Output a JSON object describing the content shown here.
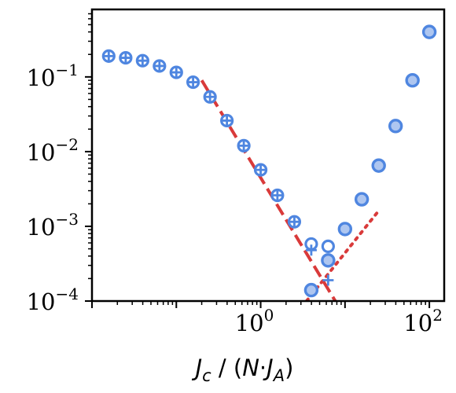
{
  "chart_data": {
    "type": "scatter",
    "xscale": "log",
    "yscale": "log",
    "xlim": [
      0.01,
      150
    ],
    "ylim": [
      0.0001,
      0.8
    ],
    "xlabel": "J_c / (N·J_A)",
    "ylabel": "",
    "title": "",
    "grid": false,
    "x_ticks": [
      {
        "value": 1,
        "label": "10^0"
      },
      {
        "value": 100,
        "label": "10^2"
      }
    ],
    "y_ticks": [
      {
        "value": 0.1,
        "label": "10^-1"
      },
      {
        "value": 0.01,
        "label": "10^-2"
      },
      {
        "value": 0.001,
        "label": "10^-3"
      },
      {
        "value": 0.0001,
        "label": "10^-4"
      }
    ],
    "series": [
      {
        "marker": "open-circle",
        "color": "#4f86e0",
        "points": [
          [
            0.0158,
            0.19
          ],
          [
            0.0251,
            0.18
          ],
          [
            0.0398,
            0.165
          ],
          [
            0.0631,
            0.14
          ],
          [
            0.1,
            0.115
          ],
          [
            0.158,
            0.085
          ],
          [
            0.251,
            0.054
          ],
          [
            0.398,
            0.026
          ],
          [
            0.631,
            0.012
          ],
          [
            1.0,
            0.0057
          ],
          [
            1.58,
            0.0026
          ],
          [
            2.51,
            0.00115
          ],
          [
            3.98,
            0.00058
          ],
          [
            6.31,
            0.00054
          ]
        ]
      },
      {
        "marker": "plus",
        "color": "#4f86e0",
        "points": [
          [
            0.0158,
            0.19
          ],
          [
            0.0251,
            0.18
          ],
          [
            0.0398,
            0.165
          ],
          [
            0.0631,
            0.14
          ],
          [
            0.1,
            0.115
          ],
          [
            0.158,
            0.085
          ],
          [
            0.251,
            0.054
          ],
          [
            0.398,
            0.026
          ],
          [
            0.631,
            0.012
          ],
          [
            1.0,
            0.0057
          ],
          [
            1.58,
            0.0026
          ],
          [
            2.51,
            0.00115
          ],
          [
            3.98,
            0.00048
          ],
          [
            6.31,
            0.00019
          ]
        ]
      },
      {
        "marker": "filled-circle",
        "color": "#aec6f0",
        "points": [
          [
            3.98,
            0.00014
          ],
          [
            6.31,
            0.00035
          ],
          [
            10,
            0.00092
          ],
          [
            15.8,
            0.0023
          ],
          [
            25.1,
            0.0065
          ],
          [
            39.8,
            0.022
          ],
          [
            63.1,
            0.09
          ],
          [
            100,
            0.4
          ]
        ]
      }
    ],
    "fit_lines": [
      {
        "style": "dashed",
        "color": "#d93a3a",
        "x": [
          0.2,
          7.8
        ],
        "y": [
          0.09,
          9.7e-05
        ]
      },
      {
        "style": "dotted",
        "color": "#d93a3a",
        "x": [
          3.5,
          26
        ],
        "y": [
          0.0001,
          0.0017
        ]
      }
    ],
    "colors": {
      "marker": "#4f86e0",
      "marker_light": "#aec6f0",
      "fit": "#d93a3a"
    }
  }
}
